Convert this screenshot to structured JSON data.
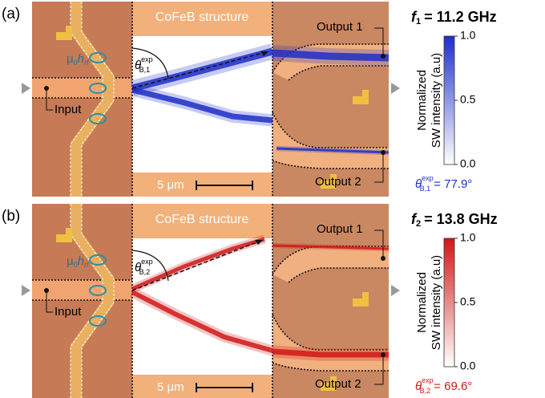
{
  "panels": [
    {
      "label": "(a)",
      "structure": "CoFeB structure",
      "output1": "Output 1",
      "output2": "Output 2",
      "input": "Input",
      "field": [
        "μ",
        "0",
        "h",
        "rf"
      ],
      "angle": [
        "θ",
        "exp",
        "B,1"
      ],
      "angle_value": "= 77.9°",
      "frequency": [
        "f",
        "1",
        "= 11.2 GHz"
      ],
      "colorbar_label": [
        "Normalized",
        "SW intensity (a.u)"
      ],
      "colorbar_ticks": [
        "1.0",
        "0.5",
        "0.0"
      ],
      "scale": "5 μm",
      "color": "#1f2fc8"
    },
    {
      "label": "(b)",
      "structure": "CoFeB structure",
      "output1": "Output 1",
      "output2": "Output 2",
      "input": "Input",
      "field": [
        "μ",
        "0",
        "h",
        "rf"
      ],
      "angle": [
        "θ",
        "exp",
        "B,2"
      ],
      "angle_value": "= 69.6°",
      "frequency": [
        "f",
        "2",
        "= 13.8 GHz"
      ],
      "colorbar_label": [
        "Normalized",
        "SW intensity (a.u)"
      ],
      "colorbar_ticks": [
        "1.0",
        "0.5",
        "0.0"
      ],
      "scale": "5 μm",
      "color": "#d01818"
    }
  ]
}
